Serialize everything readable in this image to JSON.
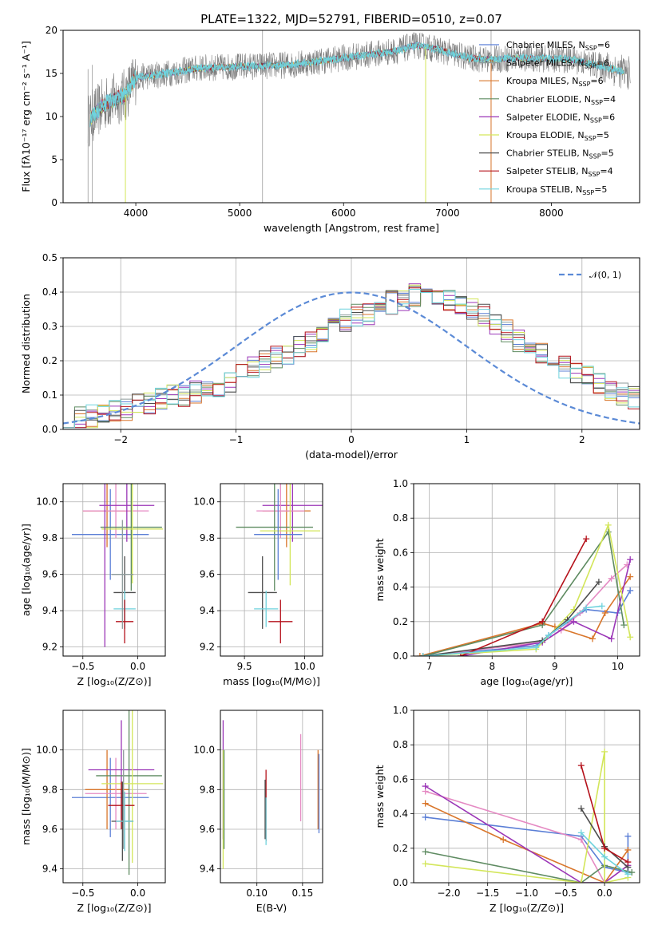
{
  "figure_title": "PLATE=1322, MJD=52791, FIBERID=0510, z=0.07",
  "colors": {
    "Chabrier MILES": "#5b7fd6",
    "Salpeter MILES": "#8e9b9b",
    "Kroupa MILES": "#d9762b",
    "Chabrier ELODIE": "#5e8b61",
    "Salpeter ELODIE": "#9b36b7",
    "Kroupa ELODIE": "#d3e65a",
    "Chabrier STELIB": "#4d4d4d",
    "Salpeter STELIB": "#b5121b",
    "Kroupa STELIB": "#6fd3dd",
    "extra": "#e58ac3",
    "gauss": "#5b8ad6"
  },
  "chart_data": [
    {
      "id": "spectrum",
      "type": "line",
      "title": "PLATE=1322, MJD=52791, FIBERID=0510, z=0.07",
      "xlabel": "wavelength [Angstrom, rest frame]",
      "ylabel": "Flux [fλ10⁻¹⁷ erg cm⁻² s⁻¹ A⁻¹]",
      "xlim": [
        3300,
        8850
      ],
      "ylim": [
        0,
        20
      ],
      "xticks": [
        4000,
        5000,
        6000,
        7000,
        8000
      ],
      "yticks": [
        0,
        5,
        10,
        15,
        20
      ],
      "grid": false,
      "legend_position": "top-right",
      "continuum": [
        [
          3540,
          9.5
        ],
        [
          3700,
          11.5
        ],
        [
          3900,
          12.5
        ],
        [
          4000,
          14.5
        ],
        [
          4300,
          15
        ],
        [
          4600,
          15.6
        ],
        [
          5000,
          15.8
        ],
        [
          5500,
          16.0
        ],
        [
          6000,
          16.8
        ],
        [
          6500,
          17.6
        ],
        [
          6700,
          18.3
        ],
        [
          6900,
          17.8
        ],
        [
          7200,
          16.8
        ],
        [
          7400,
          16.6
        ],
        [
          7700,
          16.8
        ],
        [
          8200,
          16.6
        ],
        [
          8600,
          15.5
        ],
        [
          8750,
          15.0
        ]
      ],
      "legend": [
        {
          "name": "Chabrier MILES",
          "label": "Chabrier MILES, N",
          "nssp": "=6"
        },
        {
          "name": "Salpeter MILES",
          "label": "Salpeter MILES, N",
          "nssp": "=6"
        },
        {
          "name": "Kroupa MILES",
          "label": "Kroupa MILES, N",
          "nssp": "=6"
        },
        {
          "name": "Chabrier ELODIE",
          "label": "Chabrier ELODIE, N",
          "nssp": "=4"
        },
        {
          "name": "Salpeter ELODIE",
          "label": "Salpeter ELODIE, N",
          "nssp": "=6"
        },
        {
          "name": "Kroupa ELODIE",
          "label": "Kroupa ELODIE, N",
          "nssp": "=5"
        },
        {
          "name": "Chabrier STELIB",
          "label": "Chabrier STELIB, N",
          "nssp": "=5"
        },
        {
          "name": "Salpeter STELIB",
          "label": "Salpeter STELIB, N",
          "nssp": "=4"
        },
        {
          "name": "Kroupa STELIB",
          "label": "Kroupa STELIB, N",
          "nssp": "=5"
        }
      ],
      "nssp_subscript": "SSP"
    },
    {
      "id": "residuals",
      "type": "line",
      "xlabel": "(data-model)/error",
      "ylabel": "Normed distribution",
      "xlim": [
        -2.5,
        2.5
      ],
      "ylim": [
        0,
        0.5
      ],
      "xticks": [
        -2,
        -1,
        0,
        1,
        2
      ],
      "xticklabels": [
        "−2",
        "−1",
        "0",
        "1",
        "2"
      ],
      "yticks": [
        0,
        0.1,
        0.2,
        0.3,
        0.4,
        0.5
      ],
      "yticklabels": [
        "0.0",
        "0.1",
        "0.2",
        "0.3",
        "0.4",
        "0.5"
      ],
      "grid": true,
      "legend_position": "top-right",
      "gauss_label": "𝒩(0, 1)",
      "gauss_mean": 0,
      "gauss_sigma": 1,
      "bin_width": 0.1,
      "base_hist": [
        0.03,
        0.035,
        0.04,
        0.045,
        0.05,
        0.06,
        0.07,
        0.08,
        0.09,
        0.095,
        0.1,
        0.11,
        0.12,
        0.13,
        0.14,
        0.16,
        0.18,
        0.2,
        0.21,
        0.22,
        0.24,
        0.26,
        0.28,
        0.3,
        0.32,
        0.33,
        0.34,
        0.36,
        0.37,
        0.38,
        0.39,
        0.4,
        0.39,
        0.38,
        0.36,
        0.35,
        0.33,
        0.31,
        0.29,
        0.26,
        0.24,
        0.22,
        0.2,
        0.18,
        0.17,
        0.15,
        0.13,
        0.11,
        0.1,
        0.09
      ],
      "series_order": [
        "Chabrier MILES",
        "Salpeter MILES",
        "Kroupa MILES",
        "Chabrier ELODIE",
        "Salpeter ELODIE",
        "Kroupa ELODIE",
        "Chabrier STELIB",
        "Salpeter STELIB",
        "Kroupa STELIB"
      ]
    },
    {
      "id": "age_vs_Z",
      "type": "scatter",
      "xlabel": "Z [log₁₀(Z/Z⊙)]",
      "ylabel": "age  [log₁₀(age/yr)]",
      "xlim": [
        -0.68,
        0.25
      ],
      "ylim": [
        9.15,
        10.1
      ],
      "xticks": [
        -0.5,
        0.0
      ],
      "xticklabels": [
        "−0.5",
        "0.0"
      ],
      "yticks": [
        9.2,
        9.4,
        9.6,
        9.8,
        10.0
      ],
      "yticklabels": [
        "9.2",
        "9.4",
        "9.6",
        "9.8",
        "10.0"
      ],
      "grid": true,
      "points": [
        {
          "s": "Chabrier MILES",
          "x": -0.25,
          "xerr": 0.35,
          "y": 9.82,
          "yerr": 0.25
        },
        {
          "s": "Kroupa MILES",
          "x": -0.28,
          "xerr": 0.22,
          "y": 9.95,
          "yerr": 0.2
        },
        {
          "s": "extra",
          "x": -0.2,
          "xerr": 0.3,
          "y": 9.95,
          "yerr": 0.15
        },
        {
          "s": "Salpeter ELODIE",
          "x": -0.1,
          "xerr": 0.25,
          "y": 9.98,
          "yerr": 0.2
        },
        {
          "s": "Chabrier ELODIE",
          "x": -0.06,
          "xerr": 0.28,
          "y": 9.86,
          "yerr": 0.35
        },
        {
          "s": "Kroupa ELODIE",
          "x": -0.05,
          "xerr": 0.28,
          "y": 9.85,
          "yerr": 0.3
        },
        {
          "s": "Chabrier STELIB",
          "x": -0.12,
          "xerr": 0.1,
          "y": 9.5,
          "yerr": 0.2
        },
        {
          "s": "Kroupa STELIB",
          "x": -0.12,
          "xerr": 0.1,
          "y": 9.41,
          "yerr": 0.1
        },
        {
          "s": "Salpeter STELIB",
          "x": -0.12,
          "xerr": 0.08,
          "y": 9.34,
          "yerr": 0.12
        },
        {
          "s": "Salpeter MILES",
          "x": -0.14,
          "xerr": 0.1,
          "y": 9.6,
          "yerr": 0.3
        },
        {
          "s": "Salpeter ELODIE",
          "x": -0.3,
          "xerr": 0.0,
          "y": 9.65,
          "yerr": 0.45
        }
      ]
    },
    {
      "id": "age_vs_mass",
      "type": "scatter",
      "xlabel": "mass [log₁₀(M/M⊙)]",
      "ylabel": "",
      "xlim": [
        9.3,
        10.15
      ],
      "ylim": [
        9.15,
        10.1
      ],
      "xticks": [
        9.5,
        10.0
      ],
      "xticklabels": [
        "9.5",
        "10.0"
      ],
      "yticks": [
        9.2,
        9.4,
        9.6,
        9.8,
        10.0
      ],
      "yticklabels": [
        "9.2",
        "9.4",
        "9.6",
        "9.8",
        "10.0"
      ],
      "grid": true,
      "points": [
        {
          "s": "Salpeter ELODIE",
          "x": 9.9,
          "xerr": 0.25,
          "y": 9.98,
          "yerr": 0.2
        },
        {
          "s": "Kroupa MILES",
          "x": 9.85,
          "xerr": 0.2,
          "y": 9.95,
          "yerr": 0.2
        },
        {
          "s": "extra",
          "x": 9.8,
          "xerr": 0.2,
          "y": 9.95,
          "yerr": 0.15
        },
        {
          "s": "Chabrier ELODIE",
          "x": 9.75,
          "xerr": 0.32,
          "y": 9.86,
          "yerr": 0.35
        },
        {
          "s": "Kroupa ELODIE",
          "x": 9.88,
          "xerr": 0.25,
          "y": 9.84,
          "yerr": 0.3
        },
        {
          "s": "Chabrier MILES",
          "x": 9.78,
          "xerr": 0.2,
          "y": 9.82,
          "yerr": 0.25
        },
        {
          "s": "Chabrier STELIB",
          "x": 9.65,
          "xerr": 0.12,
          "y": 9.5,
          "yerr": 0.2
        },
        {
          "s": "Kroupa STELIB",
          "x": 9.68,
          "xerr": 0.1,
          "y": 9.41,
          "yerr": 0.1
        },
        {
          "s": "Salpeter STELIB",
          "x": 9.8,
          "xerr": 0.1,
          "y": 9.34,
          "yerr": 0.12
        }
      ]
    },
    {
      "id": "mass_weight_vs_age",
      "type": "line",
      "xlabel": "age  [log₁₀(age/yr)]",
      "ylabel": "mass weight",
      "xlim": [
        6.75,
        10.35
      ],
      "ylim": [
        0,
        1
      ],
      "xticks": [
        7,
        8,
        9,
        10
      ],
      "yticks": [
        0,
        0.2,
        0.4,
        0.6,
        0.8,
        1.0
      ],
      "yticklabels": [
        "0.0",
        "0.2",
        "0.4",
        "0.6",
        "0.8",
        "1.0"
      ],
      "grid": true,
      "series": [
        {
          "s": "Chabrier MILES",
          "x": [
            6.9,
            8.7,
            8.9,
            9.5,
            10.0,
            10.2
          ],
          "y": [
            0.0,
            0.06,
            0.12,
            0.27,
            0.25,
            0.38
          ]
        },
        {
          "s": "Kroupa MILES",
          "x": [
            6.85,
            8.8,
            9.0,
            9.6,
            9.8,
            10.2
          ],
          "y": [
            0.0,
            0.19,
            0.17,
            0.1,
            0.25,
            0.46
          ]
        },
        {
          "s": "extra",
          "x": [
            6.9,
            8.8,
            9.1,
            9.4,
            9.9,
            10.15
          ],
          "y": [
            0.0,
            0.08,
            0.15,
            0.25,
            0.45,
            0.53
          ]
        },
        {
          "s": "Chabrier ELODIE",
          "x": [
            6.9,
            8.8,
            9.85,
            10.1
          ],
          "y": [
            0.0,
            0.18,
            0.72,
            0.18
          ]
        },
        {
          "s": "Salpeter ELODIE",
          "x": [
            7.5,
            8.8,
            9.3,
            9.9,
            10.2
          ],
          "y": [
            0.0,
            0.08,
            0.2,
            0.1,
            0.56
          ]
        },
        {
          "s": "Kroupa ELODIE",
          "x": [
            6.9,
            8.7,
            9.3,
            9.85,
            10.2
          ],
          "y": [
            0.0,
            0.04,
            0.27,
            0.76,
            0.11
          ]
        },
        {
          "s": "Chabrier STELIB",
          "x": [
            6.9,
            8.8,
            9.2,
            9.7
          ],
          "y": [
            0.0,
            0.09,
            0.21,
            0.43
          ]
        },
        {
          "s": "Salpeter STELIB",
          "x": [
            7.5,
            8.8,
            9.5
          ],
          "y": [
            0.0,
            0.2,
            0.68
          ]
        },
        {
          "s": "Kroupa STELIB",
          "x": [
            6.9,
            8.7,
            8.9,
            9.5,
            9.75
          ],
          "y": [
            0.0,
            0.05,
            0.12,
            0.28,
            0.29
          ]
        }
      ]
    },
    {
      "id": "mass_vs_Z",
      "type": "scatter",
      "xlabel": "Z [log₁₀(Z/Z⊙)]",
      "ylabel": "mass [log₁₀(M/M⊙)]",
      "xlim": [
        -0.68,
        0.25
      ],
      "ylim": [
        9.33,
        10.2
      ],
      "xticks": [
        -0.5,
        0.0
      ],
      "xticklabels": [
        "−0.5",
        "0.0"
      ],
      "yticks": [
        9.4,
        9.6,
        9.8,
        10.0
      ],
      "yticklabels": [
        "9.4",
        "9.6",
        "9.8",
        "10.0"
      ],
      "grid": true,
      "points": [
        {
          "s": "Chabrier MILES",
          "x": -0.25,
          "xerr": 0.35,
          "y": 9.76,
          "yerr": 0.2
        },
        {
          "s": "Kroupa MILES",
          "x": -0.28,
          "xerr": 0.2,
          "y": 9.8,
          "yerr": 0.2
        },
        {
          "s": "extra",
          "x": -0.2,
          "xerr": 0.28,
          "y": 9.78,
          "yerr": 0.18
        },
        {
          "s": "Salpeter ELODIE",
          "x": -0.15,
          "xerr": 0.3,
          "y": 9.9,
          "yerr": 0.25
        },
        {
          "s": "Chabrier ELODIE",
          "x": -0.08,
          "xerr": 0.3,
          "y": 9.87,
          "yerr": 0.5
        },
        {
          "s": "Kroupa ELODIE",
          "x": -0.05,
          "xerr": 0.28,
          "y": 9.83,
          "yerr": 0.4
        },
        {
          "s": "Chabrier STELIB",
          "x": -0.14,
          "xerr": 0.1,
          "y": 9.64,
          "yerr": 0.2
        },
        {
          "s": "Salpeter STELIB",
          "x": -0.15,
          "xerr": 0.12,
          "y": 9.72,
          "yerr": 0.12
        },
        {
          "s": "Kroupa STELIB",
          "x": -0.12,
          "xerr": 0.08,
          "y": 9.64,
          "yerr": 0.15
        },
        {
          "s": "Salpeter MILES",
          "x": -0.13,
          "xerr": 0.0,
          "y": 9.75,
          "yerr": 0.25
        }
      ]
    },
    {
      "id": "mass_vs_ebv",
      "type": "scatter",
      "xlabel": "E(B-V)",
      "ylabel": "",
      "xlim": [
        0.06,
        0.172
      ],
      "ylim": [
        9.33,
        10.2
      ],
      "xticks": [
        0.1,
        0.15
      ],
      "xticklabels": [
        "0.10",
        "0.15"
      ],
      "yticks": [
        9.4,
        9.6,
        9.8,
        10.0
      ],
      "yticklabels": [
        "9.4",
        "9.6",
        "9.8",
        "10.0"
      ],
      "grid": true,
      "points": [
        {
          "s": "Salpeter ELODIE",
          "x": 0.063,
          "xerr": 0,
          "y": 9.85,
          "yerr": 0.3
        },
        {
          "s": "Kroupa ELODIE",
          "x": 0.063,
          "xerr": 0,
          "y": 9.7,
          "yerr": 0.3
        },
        {
          "s": "Chabrier ELODIE",
          "x": 0.064,
          "xerr": 0,
          "y": 9.75,
          "yerr": 0.25
        },
        {
          "s": "Salpeter STELIB",
          "x": 0.11,
          "xerr": 0,
          "y": 9.72,
          "yerr": 0.18
        },
        {
          "s": "Kroupa STELIB",
          "x": 0.11,
          "xerr": 0,
          "y": 9.64,
          "yerr": 0.12
        },
        {
          "s": "Chabrier STELIB",
          "x": 0.109,
          "xerr": 0,
          "y": 9.7,
          "yerr": 0.15
        },
        {
          "s": "extra",
          "x": 0.148,
          "xerr": 0,
          "y": 9.86,
          "yerr": 0.22
        },
        {
          "s": "Kroupa MILES",
          "x": 0.167,
          "xerr": 0,
          "y": 9.8,
          "yerr": 0.2
        },
        {
          "s": "Chabrier MILES",
          "x": 0.168,
          "xerr": 0,
          "y": 9.78,
          "yerr": 0.2
        }
      ]
    },
    {
      "id": "mass_weight_vs_Z",
      "type": "line",
      "xlabel": "Z [log₁₀(Z/Z⊙)]",
      "ylabel": "mass weight",
      "xlim": [
        -2.45,
        0.45
      ],
      "ylim": [
        0,
        1
      ],
      "xticks": [
        -2.0,
        -1.5,
        -1.0,
        -0.5,
        0.0
      ],
      "xticklabels": [
        "−2.0",
        "−1.5",
        "−1.0",
        "−0.5",
        "0.0"
      ],
      "yticks": [
        0,
        0.2,
        0.4,
        0.6,
        0.8,
        1.0
      ],
      "yticklabels": [
        "0.0",
        "0.2",
        "0.4",
        "0.6",
        "0.8",
        "1.0"
      ],
      "grid": true,
      "series": [
        {
          "s": "Chabrier MILES",
          "x": [
            -2.3,
            -0.3,
            0.0,
            0.3,
            0.3
          ],
          "y": [
            0.38,
            0.27,
            0.09,
            0.06,
            0.27
          ]
        },
        {
          "s": "Kroupa MILES",
          "x": [
            -2.3,
            -1.3,
            0.0,
            0.3
          ],
          "y": [
            0.46,
            0.25,
            0.0,
            0.19
          ]
        },
        {
          "s": "extra",
          "x": [
            -2.3,
            -0.3,
            0.0,
            0.3
          ],
          "y": [
            0.53,
            0.25,
            0.0,
            0.1
          ]
        },
        {
          "s": "Chabrier ELODIE",
          "x": [
            -2.3,
            -0.3,
            0.0,
            0.35
          ],
          "y": [
            0.18,
            0.0,
            0.1,
            0.06
          ]
        },
        {
          "s": "Salpeter ELODIE",
          "x": [
            -2.3,
            -0.3,
            0.0,
            0.3
          ],
          "y": [
            0.56,
            0.0,
            0.0,
            0.1
          ]
        },
        {
          "s": "Kroupa ELODIE",
          "x": [
            -2.3,
            -0.3,
            0.0,
            0.0,
            0.3
          ],
          "y": [
            0.11,
            0.0,
            0.76,
            0.0,
            0.03
          ]
        },
        {
          "s": "Chabrier STELIB",
          "x": [
            -0.3,
            0.0,
            0.3
          ],
          "y": [
            0.43,
            0.21,
            0.09
          ]
        },
        {
          "s": "Salpeter STELIB",
          "x": [
            -0.3,
            0.0,
            0.3
          ],
          "y": [
            0.68,
            0.2,
            0.12
          ]
        },
        {
          "s": "Kroupa STELIB",
          "x": [
            -0.3,
            0.0,
            0.3
          ],
          "y": [
            0.29,
            0.15,
            0.05
          ]
        }
      ]
    }
  ]
}
